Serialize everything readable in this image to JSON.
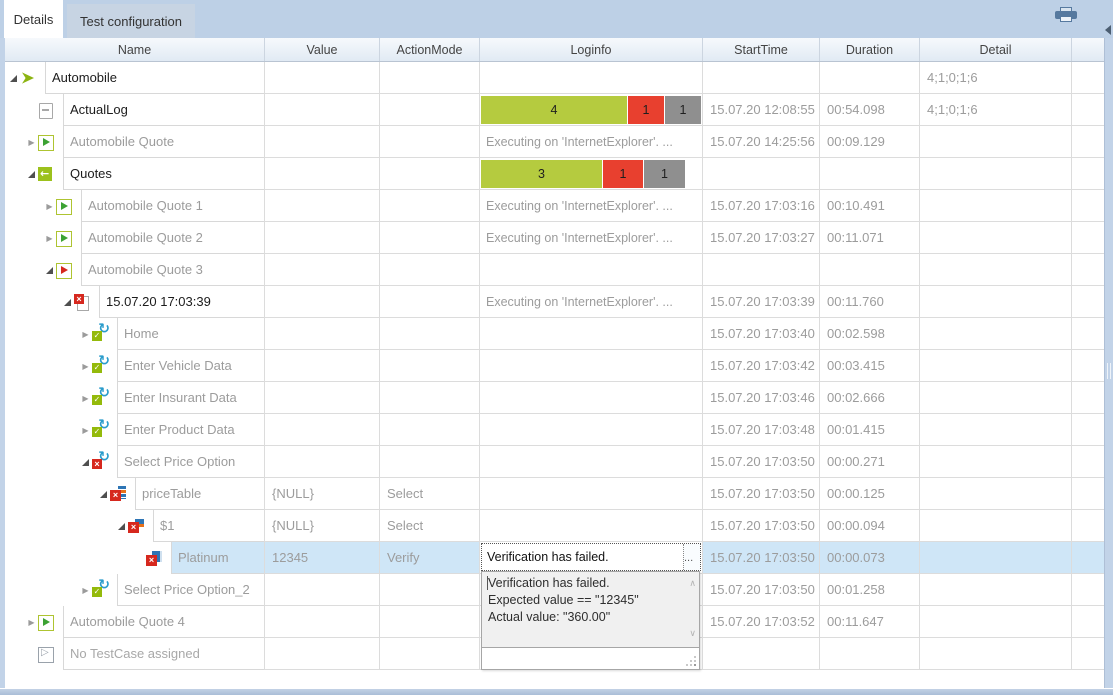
{
  "tabs": [
    {
      "label": "Details",
      "active": true
    },
    {
      "label": "Test configuration",
      "active": false
    }
  ],
  "toolbar": {
    "print_icon": "printer-icon",
    "collapse_icon": "collapse-left-arrow"
  },
  "columns": [
    "Name",
    "Value",
    "ActionMode",
    "Loginfo",
    "StartTime",
    "Duration",
    "Detail"
  ],
  "colors": {
    "bar_passed": "#b5cb3f",
    "bar_failed": "#e8402f",
    "bar_unexecuted": "#8f8f8f",
    "selection": "#cfe6f7",
    "icon_green": "#94ba0b",
    "icon_red": "#d6281e",
    "icon_blue": "#2a9ccb",
    "tab_strip": "#bdd0e6"
  },
  "rows": [
    {
      "name": "Automobile",
      "depth": 0,
      "icon": "execution-list",
      "expander": "expanded",
      "text_style": "strong",
      "value": "",
      "action_mode": "",
      "start_time": "",
      "duration": "",
      "detail": "4;1;0;1;6"
    },
    {
      "name": "ActualLog",
      "depth": 1,
      "icon": "log",
      "expander": "none",
      "text_style": "strong",
      "value": "",
      "action_mode": "",
      "loginfo_bars": [
        {
          "label": "4",
          "color": "#b5cb3f",
          "width": 146
        },
        {
          "label": "1",
          "color": "#e8402f",
          "width": 36
        },
        {
          "label": "1",
          "color": "#8f8f8f",
          "width": 36
        }
      ],
      "start_time": "15.07.20 12:08:55",
      "duration": "00:54.098",
      "detail": "4;1;0;1;6"
    },
    {
      "name": "Automobile Quote",
      "depth": 1,
      "icon": "testcase-passed",
      "expander": "collapsed",
      "text_style": "normal",
      "value": "",
      "action_mode": "",
      "loginfo_text": "Executing on 'InternetExplorer'. ...",
      "start_time": "15.07.20 14:25:56",
      "duration": "00:09.129",
      "detail": ""
    },
    {
      "name": "Quotes",
      "depth": 1,
      "icon": "folder-reference",
      "expander": "expanded",
      "text_style": "strong",
      "value": "",
      "action_mode": "",
      "loginfo_bars": [
        {
          "label": "3",
          "color": "#b5cb3f",
          "width": 121
        },
        {
          "label": "1",
          "color": "#e8402f",
          "width": 40
        },
        {
          "label": "1",
          "color": "#8f8f8f",
          "width": 41
        }
      ],
      "start_time": "",
      "duration": "",
      "detail": ""
    },
    {
      "name": "Automobile Quote 1",
      "depth": 2,
      "icon": "testcase-passed",
      "expander": "collapsed",
      "text_style": "normal",
      "value": "",
      "action_mode": "",
      "loginfo_text": "Executing on 'InternetExplorer'. ...",
      "start_time": "15.07.20 17:03:16",
      "duration": "00:10.491",
      "detail": ""
    },
    {
      "name": "Automobile Quote 2",
      "depth": 2,
      "icon": "testcase-passed",
      "expander": "collapsed",
      "text_style": "normal",
      "value": "",
      "action_mode": "",
      "loginfo_text": "Executing on 'InternetExplorer'. ...",
      "start_time": "15.07.20 17:03:27",
      "duration": "00:11.071",
      "detail": ""
    },
    {
      "name": "Automobile Quote 3",
      "depth": 2,
      "icon": "testcase-failed",
      "expander": "expanded",
      "text_style": "normal",
      "value": "",
      "action_mode": "",
      "start_time": "",
      "duration": "",
      "detail": ""
    },
    {
      "name": "15.07.20 17:03:39",
      "depth": 3,
      "icon": "execution-log-failed",
      "expander": "expanded",
      "text_style": "strong",
      "value": "",
      "action_mode": "",
      "loginfo_text": "Executing on 'InternetExplorer'. ...",
      "start_time": "15.07.20 17:03:39",
      "duration": "00:11.760",
      "detail": ""
    },
    {
      "name": "Home",
      "depth": 4,
      "icon": "teststep-passed",
      "expander": "collapsed",
      "text_style": "normal",
      "value": "",
      "action_mode": "",
      "start_time": "15.07.20 17:03:40",
      "duration": "00:02.598",
      "detail": ""
    },
    {
      "name": "Enter Vehicle Data",
      "depth": 4,
      "icon": "teststep-passed",
      "expander": "collapsed",
      "text_style": "normal",
      "value": "",
      "action_mode": "",
      "start_time": "15.07.20 17:03:42",
      "duration": "00:03.415",
      "detail": ""
    },
    {
      "name": "Enter Insurant Data",
      "depth": 4,
      "icon": "teststep-passed",
      "expander": "collapsed",
      "text_style": "normal",
      "value": "",
      "action_mode": "",
      "start_time": "15.07.20 17:03:46",
      "duration": "00:02.666",
      "detail": ""
    },
    {
      "name": "Enter Product Data",
      "depth": 4,
      "icon": "teststep-passed",
      "expander": "collapsed",
      "text_style": "normal",
      "value": "",
      "action_mode": "",
      "start_time": "15.07.20 17:03:48",
      "duration": "00:01.415",
      "detail": ""
    },
    {
      "name": "Select Price Option",
      "depth": 4,
      "icon": "teststep-failed",
      "expander": "expanded",
      "text_style": "normal",
      "value": "",
      "action_mode": "",
      "start_time": "15.07.20 17:03:50",
      "duration": "00:00.271",
      "detail": ""
    },
    {
      "name": "priceTable",
      "depth": 5,
      "icon": "table-failed",
      "expander": "expanded",
      "text_style": "normal",
      "value": "{NULL}",
      "action_mode": "Select",
      "start_time": "15.07.20 17:03:50",
      "duration": "00:00.125",
      "detail": ""
    },
    {
      "name": "$1",
      "depth": 6,
      "icon": "row-failed",
      "expander": "expanded",
      "text_style": "normal",
      "value": "{NULL}",
      "action_mode": "Select",
      "start_time": "15.07.20 17:03:50",
      "duration": "00:00.094",
      "detail": ""
    },
    {
      "name": "Platinum",
      "depth": 7,
      "icon": "cell-failed",
      "expander": "none",
      "text_style": "normal",
      "selected": true,
      "value": "12345",
      "action_mode": "Verify",
      "loginfo_editor": {
        "text": "Verification has failed.",
        "button": "..."
      },
      "start_time": "15.07.20 17:03:50",
      "duration": "00:00.073",
      "detail": ""
    },
    {
      "name": "Select Price Option_2",
      "depth": 4,
      "icon": "teststep-passed",
      "expander": "collapsed",
      "text_style": "normal",
      "value": "",
      "action_mode": "",
      "start_time": "15.07.20 17:03:50",
      "duration": "00:01.258",
      "detail": ""
    },
    {
      "name": "Automobile Quote 4",
      "depth": 1,
      "icon": "testcase-passed",
      "expander": "collapsed",
      "text_style": "normal",
      "value": "",
      "action_mode": "",
      "start_time": "15.07.20 17:03:52",
      "duration": "00:11.647",
      "detail": ""
    },
    {
      "name": "No TestCase assigned",
      "depth": 1,
      "icon": "testcase-unexecuted",
      "expander": "none",
      "text_style": "disabled",
      "value": "",
      "action_mode": "",
      "start_time": "",
      "duration": "",
      "detail": ""
    }
  ],
  "popup": {
    "lines": [
      "Verification has failed.",
      "Expected value == \"12345\"",
      "Actual value: \"360.00\""
    ]
  }
}
